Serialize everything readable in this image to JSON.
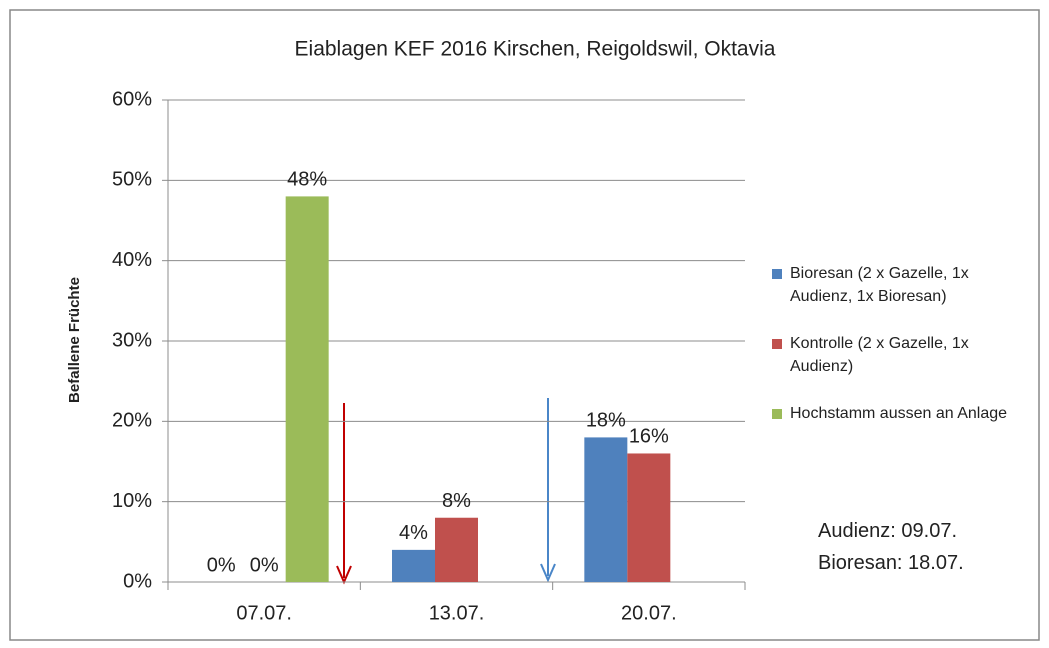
{
  "chart_data": {
    "type": "bar",
    "title": "Eiablagen KEF 2016 Kirschen, Reigoldswil, Oktavia",
    "y_label": "Befallene Früchte",
    "categories": [
      "07.07.",
      "13.07.",
      "20.07."
    ],
    "series": [
      {
        "name": "Bioresan (2 x Gazelle, 1x Audienz, 1x Bioresan)",
        "color": "#4f81bd",
        "values": [
          0,
          4,
          18
        ],
        "value_labels": [
          "0%",
          "4%",
          "18%"
        ]
      },
      {
        "name": "Kontrolle (2 x Gazelle, 1x Audienz)",
        "color": "#c0504d",
        "values": [
          0,
          8,
          16
        ],
        "value_labels": [
          "0%",
          "8%",
          "16%"
        ]
      },
      {
        "name": "Hochstamm aussen an Anlage",
        "color": "#9bbb59",
        "values": [
          48,
          null,
          null
        ],
        "value_labels": [
          "48%",
          null,
          null
        ]
      }
    ],
    "ylim": [
      0,
      60
    ],
    "yticks": [
      {
        "value": 0,
        "label": "0%"
      },
      {
        "value": 10,
        "label": "10%"
      },
      {
        "value": 20,
        "label": "20%"
      },
      {
        "value": 30,
        "label": "30%"
      },
      {
        "value": 40,
        "label": "40%"
      },
      {
        "value": 50,
        "label": "50%"
      },
      {
        "value": 60,
        "label": "60%"
      }
    ],
    "grid": true,
    "legend": "right",
    "annotations": [
      "Audienz: 09.07.",
      "Bioresan: 18.07."
    ]
  }
}
